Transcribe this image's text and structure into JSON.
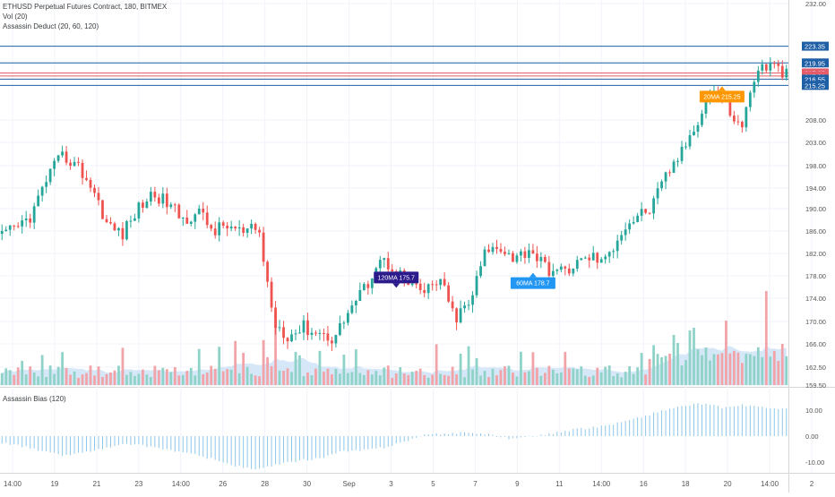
{
  "header": {
    "symbol_title": "ETHUSD Perpetual Futures Contract, 180, BITMEX",
    "volume_label": "Vol (20)",
    "indicator_label": "Assassin Deduct (20, 60, 120)",
    "bias_label": "Assassin Bias (120)"
  },
  "colors": {
    "up": "#26a69a",
    "down": "#ef5350",
    "vol_up": "#8fd3c8",
    "vol_down": "#f2a3a8",
    "vol_ma_fill": "#cfe3f7",
    "hline": "#1f5fa6",
    "hline_red": "#e35d6a",
    "bias": "#8ec7ea",
    "tag_120": "#2a1a8c",
    "tag_60": "#2196f3",
    "tag_20": "#ff9800"
  },
  "chart_data": [
    {
      "type": "candlestick",
      "ylim": [
        159.5,
        233
      ],
      "price_ticks": [
        232.0,
        220.0,
        208.0,
        203.0,
        198.0,
        194.0,
        190.0,
        186.0,
        182.0,
        178.0,
        174.0,
        170.0,
        166.0,
        162.5,
        159.5
      ],
      "x_ticks": [
        "14:00",
        "19",
        "21",
        "23",
        "14:00",
        "26",
        "28",
        "30",
        "Sep",
        "3",
        "5",
        "7",
        "9",
        "11",
        "14:00",
        "16",
        "18",
        "20",
        "14:00",
        "2"
      ],
      "horizontal_levels": [
        {
          "value": 223.35,
          "label": "223.35",
          "color": "blue"
        },
        {
          "value": 219.95,
          "label": "219.95",
          "color": "blue"
        },
        {
          "value": 217.85,
          "label": "217.85",
          "color": "red"
        },
        {
          "value": 217.21,
          "label": "217.21",
          "color": "red"
        },
        {
          "value": 216.55,
          "label": "216.55",
          "color": "blue"
        },
        {
          "value": 215.25,
          "label": "215.25",
          "color": "blue"
        }
      ],
      "ma_tags": [
        {
          "label": "120MA 175.7",
          "value": 175.7
        },
        {
          "label": "60MA 178.7",
          "value": 178.7
        },
        {
          "label": "20MA 215.25",
          "value": 215.25
        }
      ],
      "key_closes": [
        185.0,
        186.5,
        189.0,
        196.0,
        200.0,
        198.0,
        194.0,
        187.0,
        185.5,
        190.0,
        193.0,
        191.0,
        188.0,
        189.5,
        186.0,
        187.0,
        185.5,
        186.5,
        170.0,
        167.5,
        169.0,
        168.0,
        167.0,
        172.0,
        175.5,
        181.0,
        179.5,
        176.0,
        175.0,
        177.5,
        170.5,
        173.0,
        182.0,
        183.5,
        181.0,
        183.0,
        179.5,
        178.5,
        180.0,
        181.5,
        180.5,
        186.0,
        188.5,
        190.0,
        196.0,
        200.5,
        207.0,
        215.0,
        211.0,
        206.0,
        218.5,
        219.5,
        217.5
      ]
    },
    {
      "type": "bar",
      "name": "Assassin Bias (120)",
      "ylim": [
        -14,
        14
      ],
      "ticks": [
        10.0,
        0.0,
        -10.0
      ],
      "values_envelope": [
        -2.5,
        -4.0,
        -6.0,
        -7.5,
        -6.0,
        -4.5,
        -3.0,
        -4.0,
        -5.5,
        -7.0,
        -9.0,
        -11.5,
        -13.0,
        -11.0,
        -9.5,
        -8.5,
        -6.0,
        -5.5,
        -4.5,
        -2.0,
        0.5,
        1.0,
        1.5,
        0.5,
        -1.0,
        0.0,
        1.0,
        2.5,
        3.5,
        5.0,
        7.0,
        9.5,
        11.5,
        12.5,
        11.0,
        12.0,
        11.0,
        10.5
      ]
    }
  ]
}
